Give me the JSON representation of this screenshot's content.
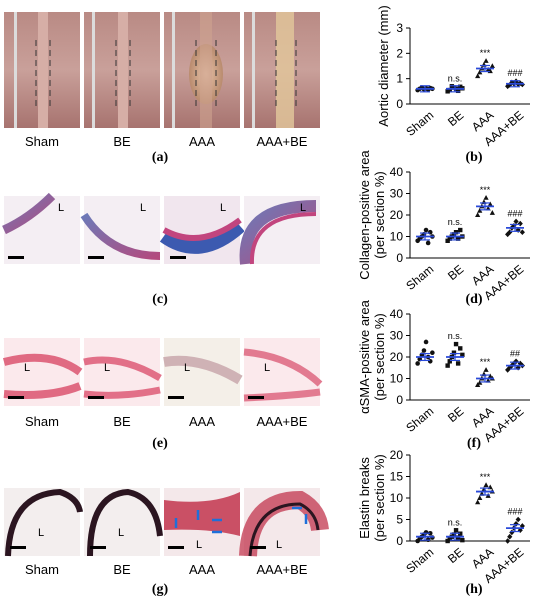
{
  "rows": [
    {
      "letter": "(a)",
      "chart_letter": "(b)",
      "image_labels": [
        "Sham",
        "BE",
        "AAA",
        "AAA+BE"
      ],
      "image_style": "photo"
    },
    {
      "letter": "(c)",
      "chart_letter": "(d)",
      "image_labels": [
        "",
        "",
        "",
        ""
      ],
      "image_style": "trichrome"
    },
    {
      "letter": "(e)",
      "chart_letter": "(f)",
      "image_labels": [
        "Sham",
        "BE",
        "AAA",
        "AAA+BE"
      ],
      "image_style": "sma"
    },
    {
      "letter": "(g)",
      "chart_letter": "(h)",
      "image_labels": [
        "Sham",
        "BE",
        "AAA",
        "AAA+BE"
      ],
      "image_style": "elastin"
    }
  ],
  "lumen_label": "L",
  "colors": {
    "point": "#111111",
    "mean_bar": "#2a4ad9",
    "axis": "#000000",
    "break_arrow": "#1e6fd9"
  },
  "chart_data": [
    {
      "type": "scatter",
      "panel": "(b)",
      "categories": [
        "Sham",
        "BE",
        "AAA",
        "AAA+BE"
      ],
      "ylabel": "Aortic diameter (mm)",
      "ylim": [
        0,
        3
      ],
      "yticks": [
        0,
        1,
        2,
        3
      ],
      "means": [
        0.6,
        0.6,
        1.4,
        0.8
      ],
      "points": [
        [
          0.55,
          0.6,
          0.65,
          0.58,
          0.62,
          0.57,
          0.63,
          0.6
        ],
        [
          0.5,
          0.55,
          0.7,
          0.65,
          0.6,
          0.52,
          0.68,
          0.62
        ],
        [
          1.1,
          1.25,
          1.4,
          1.55,
          1.7,
          1.35,
          1.3,
          1.5
        ],
        [
          0.7,
          0.75,
          0.85,
          0.8,
          0.9,
          0.78,
          0.82,
          0.77
        ]
      ],
      "annotations": [
        "",
        "n.s.",
        "***",
        "###"
      ]
    },
    {
      "type": "scatter",
      "panel": "(d)",
      "categories": [
        "Sham",
        "BE",
        "AAA",
        "AAA+BE"
      ],
      "ylabel": "Collagen-positive area (per section %)",
      "ylim": [
        0,
        40
      ],
      "yticks": [
        0,
        10,
        20,
        30,
        40
      ],
      "means": [
        10,
        10,
        24,
        14
      ],
      "points": [
        [
          8,
          9,
          10,
          11,
          13,
          7,
          12,
          10
        ],
        [
          8,
          9,
          10,
          11,
          12,
          9,
          13,
          10
        ],
        [
          20,
          22,
          24,
          26,
          28,
          23,
          25,
          21
        ],
        [
          11,
          12,
          14,
          15,
          17,
          13,
          16,
          12
        ]
      ],
      "annotations": [
        "",
        "n.s.",
        "***",
        "###"
      ]
    },
    {
      "type": "scatter",
      "panel": "(f)",
      "categories": [
        "Sham",
        "BE",
        "AAA",
        "AAA+BE"
      ],
      "ylabel": "αSMA-positive area (per section %)",
      "ylim": [
        0,
        40
      ],
      "yticks": [
        0,
        10,
        20,
        30,
        40
      ],
      "means": [
        20,
        20,
        10,
        16
      ],
      "points": [
        [
          17,
          19,
          21,
          23,
          27,
          20,
          18,
          22
        ],
        [
          16,
          18,
          20,
          22,
          26,
          17,
          24,
          21
        ],
        [
          7,
          8,
          10,
          12,
          14,
          9,
          11,
          10
        ],
        [
          14,
          15,
          16,
          17,
          18,
          15,
          17,
          16
        ]
      ],
      "annotations": [
        "",
        "n.s.",
        "***",
        "##"
      ]
    },
    {
      "type": "scatter",
      "panel": "(h)",
      "categories": [
        "Sham",
        "BE",
        "AAA",
        "AAA+BE"
      ],
      "ylabel": "Elastin breaks (per section %)",
      "ylim": [
        0,
        20
      ],
      "yticks": [
        0,
        5,
        10,
        15,
        20
      ],
      "means": [
        1,
        1,
        11.5,
        3
      ],
      "points": [
        [
          0,
          0.5,
          1,
          1.5,
          2,
          0.3,
          1.8,
          0.8
        ],
        [
          0,
          0.5,
          1,
          1.5,
          2.5,
          0.8,
          1.7,
          0.2
        ],
        [
          9,
          10,
          11,
          12,
          13,
          10.5,
          12.5,
          11.5
        ],
        [
          0,
          1,
          2,
          3,
          4,
          5,
          2.5,
          3.5
        ]
      ],
      "annotations": [
        "",
        "n.s.",
        "***",
        "###"
      ]
    }
  ]
}
